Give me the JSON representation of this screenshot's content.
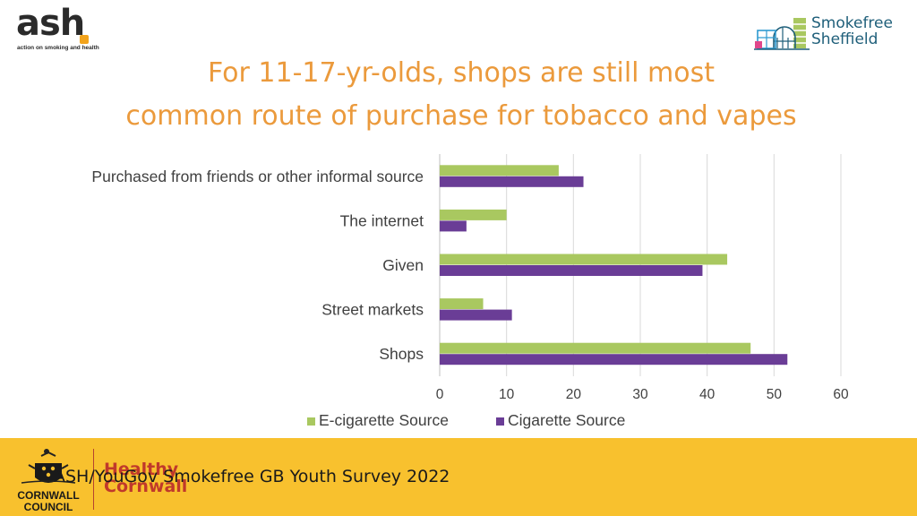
{
  "header": {
    "ash_logo": {
      "word": "ash",
      "tagline": "action on smoking and health"
    },
    "smokefree_logo": {
      "line1": "Smokefree",
      "line2": "Sheffield"
    }
  },
  "title": {
    "line1": "For 11-17-yr-olds, shops are still most",
    "line2": "common route of purchase for tobacco and vapes"
  },
  "chart_data": {
    "type": "bar",
    "orientation": "horizontal",
    "categories": [
      "Purchased from friends or other informal source",
      "The internet",
      "Given",
      "Street markets",
      "Shops"
    ],
    "series": [
      {
        "name": "E-cigarette Source",
        "color": "#a9c860",
        "values": [
          17.8,
          10.0,
          43.0,
          6.5,
          46.5
        ]
      },
      {
        "name": "Cigarette Source",
        "color": "#6a3d96",
        "values": [
          21.5,
          4.0,
          39.3,
          10.8,
          52.0
        ]
      }
    ],
    "xlim": [
      0,
      60
    ],
    "xticks": [
      0,
      10,
      20,
      30,
      40,
      50,
      60
    ],
    "grid": true,
    "legend_position": "bottom"
  },
  "footer": {
    "source": "ASH/YouGov Smokefree GB Youth Survey 2022",
    "council_logo": {
      "line1": "CORNWALL",
      "line2": "COUNCIL"
    },
    "healthy_cornwall_logo": {
      "line1": "Healthy",
      "line2": "Cornwall"
    }
  }
}
